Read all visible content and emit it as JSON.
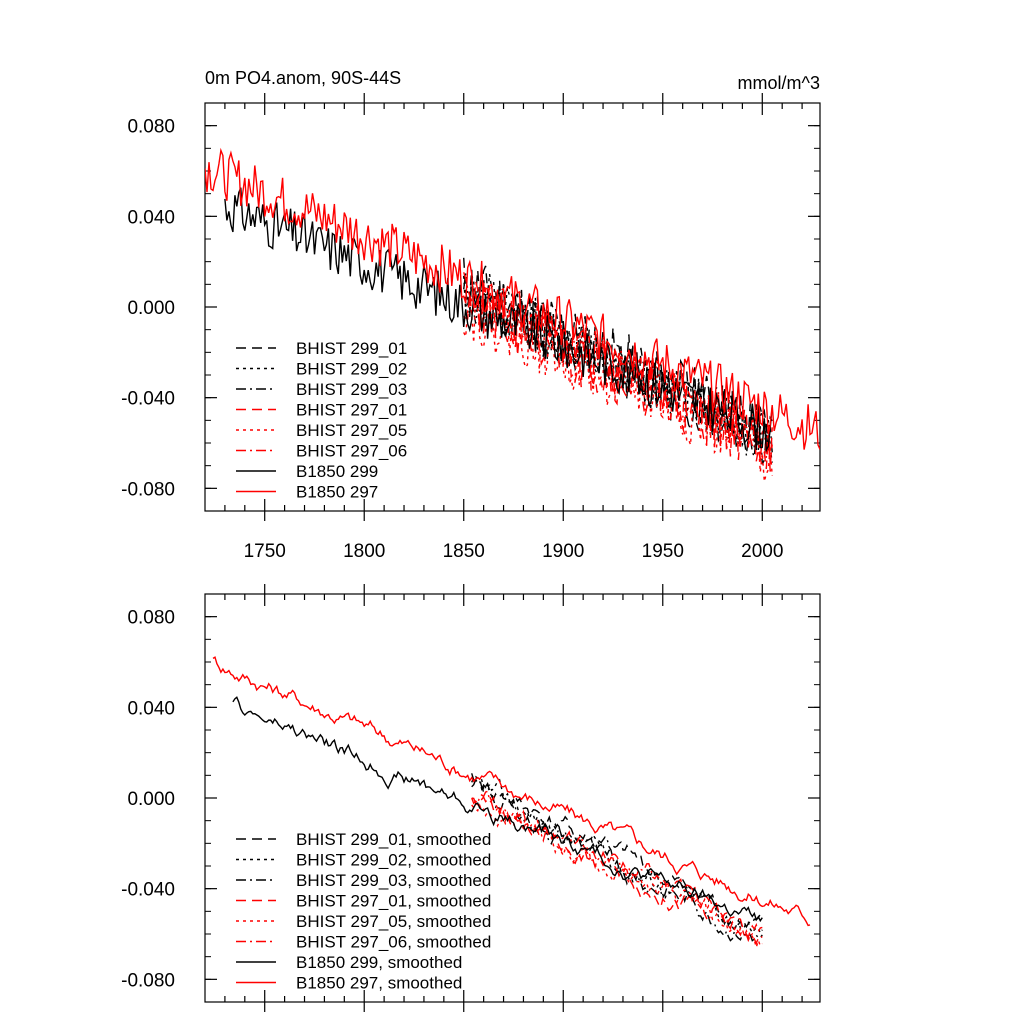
{
  "chart_data": [
    {
      "type": "line",
      "title_left": "0m PO4.anom, 90S-44S",
      "title_right": "mmol/m^3",
      "xlim": [
        1720,
        2029
      ],
      "ylim": [
        -0.09,
        0.09
      ],
      "x_ticks": [
        1750,
        1800,
        1850,
        1900,
        1950,
        2000
      ],
      "x_tick_labels": [
        "1750",
        "1800",
        "1850",
        "1900",
        "1950",
        "2000"
      ],
      "y_ticks": [
        0.08,
        0.04,
        0.0,
        -0.04,
        -0.08
      ],
      "y_tick_labels": [
        "0.080",
        "0.040",
        "0.000",
        "-0.040",
        "-0.080"
      ],
      "legend_position": "lower-left",
      "series": [
        {
          "name": "BHIST 299_01",
          "color": "#000000",
          "dash": "dash",
          "x_start": 1850,
          "x_end": 2005,
          "start": 0.012,
          "end": -0.055,
          "noise": 0.012,
          "seed": 11
        },
        {
          "name": "BHIST 299_02",
          "color": "#000000",
          "dash": "dot",
          "x_start": 1850,
          "x_end": 2005,
          "start": 0.008,
          "end": -0.057,
          "noise": 0.012,
          "seed": 12
        },
        {
          "name": "BHIST 299_03",
          "color": "#000000",
          "dash": "dashdot",
          "x_start": 1850,
          "x_end": 2005,
          "start": 0.006,
          "end": -0.06,
          "noise": 0.012,
          "seed": 13
        },
        {
          "name": "BHIST 297_01",
          "color": "#ff0000",
          "dash": "dash",
          "x_start": 1850,
          "x_end": 2005,
          "start": 0.002,
          "end": -0.062,
          "noise": 0.013,
          "seed": 21
        },
        {
          "name": "BHIST 297_05",
          "color": "#ff0000",
          "dash": "dot",
          "x_start": 1850,
          "x_end": 2005,
          "start": 0.0,
          "end": -0.065,
          "noise": 0.014,
          "seed": 22
        },
        {
          "name": "BHIST 297_06",
          "color": "#ff0000",
          "dash": "dashdot",
          "x_start": 1850,
          "x_end": 2005,
          "start": 0.004,
          "end": -0.06,
          "noise": 0.013,
          "seed": 23
        },
        {
          "name": "B1850 299",
          "color": "#000000",
          "dash": "solid",
          "x_start": 1730,
          "x_end": 2005,
          "start": 0.045,
          "end": -0.055,
          "noise": 0.011,
          "seed": 31
        },
        {
          "name": "B1850 297",
          "color": "#ff0000",
          "dash": "solid",
          "x_start": 1720,
          "x_end": 2029,
          "start": 0.062,
          "end": -0.055,
          "noise": 0.011,
          "seed": 32
        }
      ]
    },
    {
      "type": "line",
      "xlim": [
        1720,
        2029
      ],
      "ylim": [
        -0.09,
        0.09
      ],
      "y_ticks": [
        0.08,
        0.04,
        0.0,
        -0.04,
        -0.08
      ],
      "y_tick_labels": [
        "0.080",
        "0.040",
        "0.000",
        "-0.040",
        "-0.080"
      ],
      "legend_position": "lower-left",
      "series": [
        {
          "name": "BHIST 299_01, smoothed",
          "color": "#000000",
          "dash": "dash",
          "x_start": 1854,
          "x_end": 2000,
          "start": 0.008,
          "end": -0.058,
          "noise": 0.005,
          "seed": 41
        },
        {
          "name": "BHIST 299_02, smoothed",
          "color": "#000000",
          "dash": "dot",
          "x_start": 1854,
          "x_end": 2000,
          "start": 0.005,
          "end": -0.06,
          "noise": 0.005,
          "seed": 42
        },
        {
          "name": "BHIST 299_03, smoothed",
          "color": "#000000",
          "dash": "dashdot",
          "x_start": 1854,
          "x_end": 2000,
          "start": 0.004,
          "end": -0.062,
          "noise": 0.005,
          "seed": 43
        },
        {
          "name": "BHIST 297_01, smoothed",
          "color": "#ff0000",
          "dash": "dash",
          "x_start": 1854,
          "x_end": 2000,
          "start": 0.0,
          "end": -0.062,
          "noise": 0.005,
          "seed": 44
        },
        {
          "name": "BHIST 297_05, smoothed",
          "color": "#ff0000",
          "dash": "dot",
          "x_start": 1854,
          "x_end": 2000,
          "start": -0.002,
          "end": -0.064,
          "noise": 0.005,
          "seed": 45
        },
        {
          "name": "BHIST 297_06, smoothed",
          "color": "#ff0000",
          "dash": "dashdot",
          "x_start": 1854,
          "x_end": 2000,
          "start": 0.002,
          "end": -0.06,
          "noise": 0.005,
          "seed": 46
        },
        {
          "name": "B1850 299, smoothed",
          "color": "#000000",
          "dash": "solid",
          "x_start": 1734,
          "x_end": 2000,
          "start": 0.04,
          "end": -0.055,
          "noise": 0.004,
          "seed": 47
        },
        {
          "name": "B1850 297, smoothed",
          "color": "#ff0000",
          "dash": "solid",
          "x_start": 1724,
          "x_end": 2024,
          "start": 0.06,
          "end": -0.053,
          "noise": 0.004,
          "seed": 48
        }
      ]
    }
  ]
}
